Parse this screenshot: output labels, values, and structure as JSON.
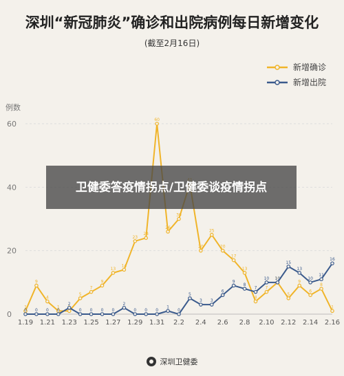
{
  "chart_data": {
    "type": "line",
    "title": "深圳“新冠肺炎”确诊和出院病例每日新增变化",
    "subtitle": "(截至2月16日)",
    "ylabel": "例数",
    "xlabel": "",
    "ylim": [
      0,
      60
    ],
    "yticks": [
      0,
      20,
      40,
      60
    ],
    "grid": true,
    "legend_position": "top-right",
    "x": [
      "1.19",
      "1.20",
      "1.21",
      "1.22",
      "1.23",
      "1.24",
      "1.25",
      "1.26",
      "1.27",
      "1.28",
      "1.29",
      "1.30",
      "1.31",
      "2.1",
      "2.2",
      "2.3",
      "2.4",
      "2.5",
      "2.6",
      "2.7",
      "2.8",
      "2.9",
      "2.10",
      "2.11",
      "2.12",
      "2.13",
      "2.14",
      "2.15",
      "2.16"
    ],
    "x_tick_labels": [
      "1.19",
      "1.21",
      "1.23",
      "1.25",
      "1.27",
      "1.29",
      "1.31",
      "2.2",
      "2.4",
      "2.6",
      "2.8",
      "2.10",
      "2.12",
      "2.14",
      "2.16"
    ],
    "series": [
      {
        "name": "新增确诊",
        "color": "#f0b429",
        "values": [
          1,
          9,
          4,
          1,
          1,
          5,
          7,
          9,
          13,
          14,
          23,
          24,
          60,
          26,
          30,
          41,
          20,
          25,
          20,
          17,
          13,
          4,
          7,
          10,
          5,
          9,
          6,
          8,
          1
        ]
      },
      {
        "name": "新增出院",
        "color": "#3a5a8c",
        "values": [
          0,
          0,
          0,
          0,
          2,
          0,
          0,
          0,
          0,
          2,
          0,
          0,
          0,
          1,
          0,
          5,
          3,
          3,
          6,
          9,
          8,
          7,
          10,
          10,
          15,
          13,
          10,
          11,
          16
        ]
      }
    ]
  },
  "overlay": {
    "text": "卫健委答疫情拐点/卫健委谈疫情拐点"
  },
  "footer": {
    "source": "深圳卫健委"
  }
}
